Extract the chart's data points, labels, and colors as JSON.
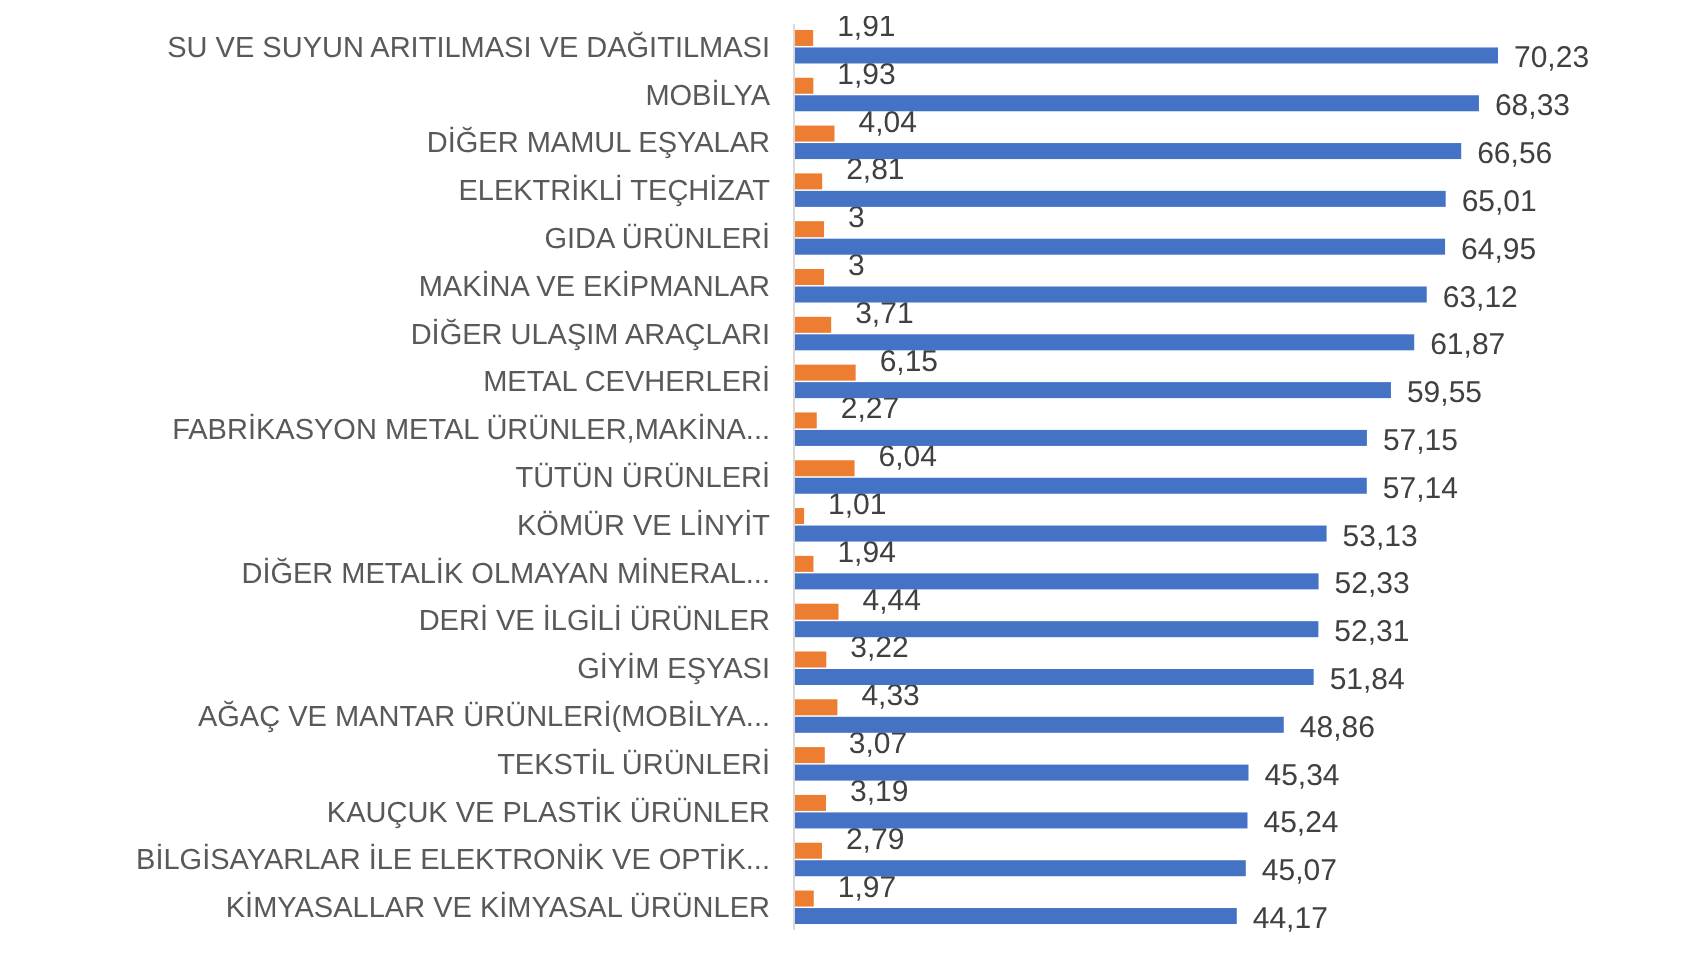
{
  "chart_data": {
    "type": "bar",
    "orientation": "horizontal",
    "categories": [
      "SU VE SUYUN ARITILMASI VE DAĞITILMASI",
      "MOBİLYA",
      "DİĞER MAMUL EŞYALAR",
      "ELEKTRİKLİ TEÇHİZAT",
      "GIDA ÜRÜNLERİ",
      "MAKİNA VE EKİPMANLAR",
      "DİĞER ULAŞIM ARAÇLARI",
      "METAL CEVHERLERİ",
      "FABRİKASYON METAL ÜRÜNLER,MAKİNA...",
      "TÜTÜN ÜRÜNLERİ",
      "KÖMÜR VE LİNYİT",
      "DİĞER METALİK OLMAYAN MİNERAL...",
      "DERİ VE İLGİLİ ÜRÜNLER",
      "GİYİM EŞYASI",
      "AĞAÇ VE MANTAR ÜRÜNLERİ(MOBİLYA...",
      "TEKSTİL ÜRÜNLERİ",
      "KAUÇUK VE PLASTİK ÜRÜNLER",
      "BİLGİSAYARLAR İLE ELEKTRONİK VE OPTİK...",
      "KİMYASALLAR VE KİMYASAL ÜRÜNLER"
    ],
    "series": [
      {
        "color": "#ed7d31",
        "values": [
          1.91,
          1.93,
          4.04,
          2.81,
          3,
          3,
          3.71,
          6.15,
          2.27,
          6.04,
          1.01,
          1.94,
          4.44,
          3.22,
          4.33,
          3.07,
          3.19,
          2.79,
          1.97
        ],
        "value_labels": [
          "1,91",
          "1,93",
          "4,04",
          "2,81",
          "3",
          "3",
          "3,71",
          "6,15",
          "2,27",
          "6,04",
          "1,01",
          "1,94",
          "4,44",
          "3,22",
          "4,33",
          "3,07",
          "3,19",
          "2,79",
          "1,97"
        ]
      },
      {
        "color": "#4472c4",
        "values": [
          70.23,
          68.33,
          66.56,
          65.01,
          64.95,
          63.12,
          61.87,
          59.55,
          57.15,
          57.14,
          53.13,
          52.33,
          52.31,
          51.84,
          48.86,
          45.34,
          45.24,
          45.07,
          44.17
        ],
        "value_labels": [
          "70,23",
          "68,33",
          "66,56",
          "65,01",
          "64,95",
          "63,12",
          "61,87",
          "59,55",
          "57,15",
          "57,14",
          "53,13",
          "52,33",
          "52,31",
          "51,84",
          "48,86",
          "45,34",
          "45,24",
          "45,07",
          "44,17"
        ]
      }
    ]
  }
}
